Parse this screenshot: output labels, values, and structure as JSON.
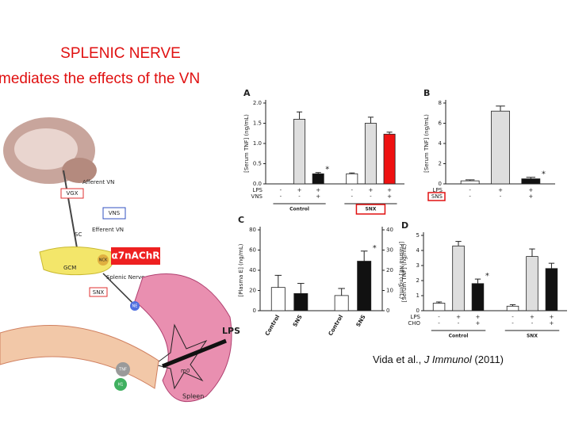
{
  "title": {
    "line1": "SPLENIC NERVE",
    "line2": "mediates the effects of the VN"
  },
  "citation": {
    "authors": "Vida et al., ",
    "journal": "J Immunol",
    "year": " (2011)"
  },
  "diagram": {
    "afferent": "Afferent VN",
    "vgx": "VGX",
    "vns": "VNS",
    "efferent": "Efferent VN",
    "sc": "SC",
    "receptor": "α7nAChR",
    "gcm": "GCM",
    "nck": "NCK",
    "splenic": "Splenic Nerve",
    "snx": "SNX",
    "ne": "NE",
    "lps": "LPS",
    "macrophage": "m0",
    "tnf": "TNF",
    "h1": "H1",
    "spleen": "Spleen"
  },
  "chart_data": [
    {
      "type": "bar",
      "label": "A",
      "ylabel": "[Serum TNF] (ng/mL)",
      "ylim": [
        0,
        2
      ],
      "yticks": [
        {
          "value": 0,
          "label": "0.0"
        },
        0.5,
        {
          "value": 1,
          "label": "1.0"
        },
        1.5,
        {
          "value": 2,
          "label": "2.0"
        }
      ],
      "values": [
        0,
        1.6,
        0.25,
        0.25,
        1.5,
        1.23
      ],
      "errors": [
        0,
        0.18,
        0.03,
        0.02,
        0.15,
        0.05
      ],
      "colors": [
        "#ffffff",
        "#dedede",
        "#111111",
        "#ffffff",
        "#dedede",
        "#ee1111"
      ],
      "significance": [
        null,
        null,
        "*",
        null,
        null,
        null
      ],
      "rows": [
        {
          "name": "LPS",
          "signs": [
            "-",
            "+",
            "+",
            "-",
            "+",
            "+"
          ]
        },
        {
          "name": "VNS",
          "signs": [
            "-",
            "-",
            "+",
            "-",
            "-",
            "+"
          ]
        }
      ],
      "groups": [
        {
          "label": "Control",
          "boxed": false
        },
        {
          "label": "SNX",
          "boxed": true
        }
      ]
    },
    {
      "type": "bar",
      "label": "B",
      "ylabel": "[Serum TNF] (ng/mL)",
      "ylim": [
        0,
        8
      ],
      "yticks": [
        0,
        2,
        4,
        6,
        8
      ],
      "values": [
        0.3,
        7.2,
        0.5
      ],
      "errors": [
        0.1,
        0.5,
        0.15
      ],
      "colors": [
        "#ffffff",
        "#dedede",
        "#111111"
      ],
      "significance": [
        null,
        null,
        "*"
      ],
      "rows": [
        {
          "name": "LPS",
          "signs": [
            "-",
            "+",
            "+"
          ]
        },
        {
          "name": "SNS",
          "signs": [
            "-",
            "-",
            "+"
          ],
          "boxed": true
        }
      ],
      "groups": []
    },
    {
      "type": "bar",
      "label": "C",
      "ylabel": "[Plasma E] (ng/mL)",
      "y2label": "[Plasma NE] (ng/mL)",
      "ylim": [
        0,
        80
      ],
      "yticks": [
        0,
        20,
        40,
        60,
        80
      ],
      "y2lim": [
        0,
        40
      ],
      "y2ticks": [
        0,
        10,
        20,
        30,
        40
      ],
      "series": [
        {
          "axis": "y",
          "categories": [
            "Control",
            "SNS"
          ],
          "values": [
            23,
            17
          ],
          "errors": [
            12,
            10
          ],
          "colors": [
            "#ffffff",
            "#111111"
          ],
          "significance": [
            null,
            null
          ]
        },
        {
          "axis": "y2",
          "categories": [
            "Control",
            "SNS"
          ],
          "values": [
            7.5,
            24.5
          ],
          "errors": [
            3.5,
            5
          ],
          "colors": [
            "#ffffff",
            "#111111"
          ],
          "significance": [
            null,
            "*"
          ]
        }
      ]
    },
    {
      "type": "bar",
      "label": "D",
      "ylabel": "[Serum TNF] (ng/mL)",
      "ylim": [
        0,
        5
      ],
      "yticks": [
        0,
        1,
        2,
        3,
        4,
        5
      ],
      "values": [
        0.5,
        4.3,
        1.8,
        0.3,
        3.6,
        2.8
      ],
      "errors": [
        0.08,
        0.3,
        0.3,
        0.1,
        0.5,
        0.35
      ],
      "colors": [
        "#ffffff",
        "#dedede",
        "#111111",
        "#ffffff",
        "#dedede",
        "#111111"
      ],
      "significance": [
        null,
        null,
        "*",
        null,
        null,
        null
      ],
      "rows": [
        {
          "name": "LPS",
          "signs": [
            "-",
            "+",
            "+",
            "-",
            "+",
            "+"
          ]
        },
        {
          "name": "CHO",
          "signs": [
            "-",
            "-",
            "+",
            "-",
            "-",
            "+"
          ]
        }
      ],
      "groups": [
        {
          "label": "Control",
          "boxed": false
        },
        {
          "label": "SNX",
          "boxed": false
        }
      ]
    }
  ]
}
